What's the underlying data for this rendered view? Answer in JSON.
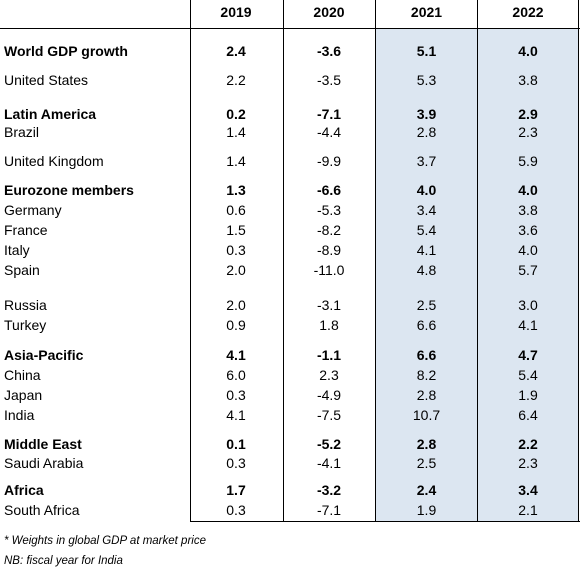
{
  "headers": [
    "2019",
    "2020",
    "2021",
    "2022"
  ],
  "rows": [
    {
      "label": "World GDP growth",
      "values": [
        "2.4",
        "-3.6",
        "5.1",
        "4.0"
      ],
      "bold": true
    },
    {
      "label": "United States",
      "values": [
        "2.2",
        "-3.5",
        "5.3",
        "3.8"
      ],
      "bold": false
    },
    {
      "label": "Latin America",
      "values": [
        "0.2",
        "-7.1",
        "3.9",
        "2.9"
      ],
      "bold": true
    },
    {
      "label": "Brazil",
      "values": [
        "1.4",
        "-4.4",
        "2.8",
        "2.3"
      ],
      "bold": false
    },
    {
      "label": "United Kingdom",
      "values": [
        "1.4",
        "-9.9",
        "3.7",
        "5.9"
      ],
      "bold": false
    },
    {
      "label": "Eurozone members",
      "values": [
        "1.3",
        "-6.6",
        "4.0",
        "4.0"
      ],
      "bold": true
    },
    {
      "label": "Germany",
      "values": [
        "0.6",
        "-5.3",
        "3.4",
        "3.8"
      ],
      "bold": false
    },
    {
      "label": "France",
      "values": [
        "1.5",
        "-8.2",
        "5.4",
        "3.6"
      ],
      "bold": false
    },
    {
      "label": "Italy",
      "values": [
        "0.3",
        "-8.9",
        "4.1",
        "4.0"
      ],
      "bold": false
    },
    {
      "label": "Spain",
      "values": [
        "2.0",
        "-11.0",
        "4.8",
        "5.7"
      ],
      "bold": false
    },
    {
      "label": "Russia",
      "values": [
        "2.0",
        "-3.1",
        "2.5",
        "3.0"
      ],
      "bold": false
    },
    {
      "label": "Turkey",
      "values": [
        "0.9",
        "1.8",
        "6.6",
        "4.1"
      ],
      "bold": false
    },
    {
      "label": "Asia-Pacific",
      "values": [
        "4.1",
        "-1.1",
        "6.6",
        "4.7"
      ],
      "bold": true
    },
    {
      "label": "China",
      "values": [
        "6.0",
        "2.3",
        "8.2",
        "5.4"
      ],
      "bold": false
    },
    {
      "label": "Japan",
      "values": [
        "0.3",
        "-4.9",
        "2.8",
        "1.9"
      ],
      "bold": false
    },
    {
      "label": "India",
      "values": [
        "4.1",
        "-7.5",
        "10.7",
        "6.4"
      ],
      "bold": false
    },
    {
      "label": "Middle East",
      "values": [
        "0.1",
        "-5.2",
        "2.8",
        "2.2"
      ],
      "bold": true
    },
    {
      "label": "Saudi Arabia",
      "values": [
        "0.3",
        "-4.1",
        "2.5",
        "2.3"
      ],
      "bold": false
    },
    {
      "label": "Africa",
      "values": [
        "1.7",
        "-3.2",
        "2.4",
        "3.4"
      ],
      "bold": true
    },
    {
      "label": "South Africa",
      "values": [
        "0.3",
        "-7.1",
        "1.9",
        "2.1"
      ],
      "bold": false
    }
  ],
  "footnotes": [
    "* Weights in global GDP at market price",
    "NB: fiscal year for India"
  ]
}
